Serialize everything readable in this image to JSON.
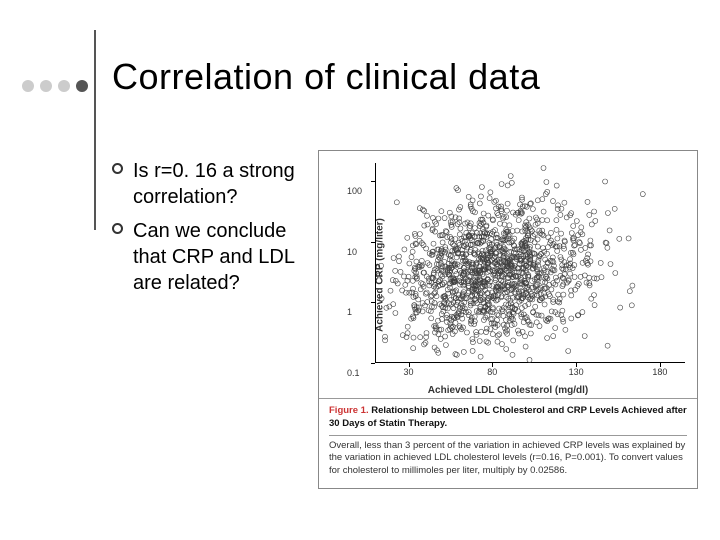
{
  "title": "Correlation of clinical data",
  "bullets": [
    "Is r=0. 16 a strong correlation?",
    "Can we conclude that CRP and LDL are related?"
  ],
  "title_fontsize": 36,
  "title_color": "#000000",
  "bullet_fontsize": 20,
  "decor_bullet_colors": [
    "#cccccc",
    "#cccccc",
    "#cccccc",
    "#555555"
  ],
  "vline_color": "#555555",
  "chart": {
    "type": "scatter",
    "xlabel": "Achieved LDL Cholesterol (mg/dl)",
    "ylabel": "Achieved CRP (mg/liter)",
    "label_fontsize": 10,
    "tick_fontsize": 9,
    "xlim": [
      10,
      195
    ],
    "ylim_log": [
      0.1,
      200
    ],
    "xticks": [
      30,
      80,
      130,
      180
    ],
    "yticks": [
      0.1,
      1,
      10,
      100
    ],
    "background_color": "#ffffff",
    "axis_color": "#000000",
    "marker_style": "open-circle",
    "marker_size": 2.5,
    "marker_stroke": "#404040",
    "marker_fill": "none",
    "n_points_approx": 1400,
    "x_cluster_mean": 80,
    "x_cluster_sd": 28,
    "y_log10_cluster_mean": 0.5,
    "y_log10_cluster_sd": 0.55,
    "r": 0.16,
    "seed": 123457
  },
  "caption": {
    "label": "Figure 1.",
    "title": "Relationship between LDL Cholesterol and CRP Levels Achieved after 30 Days of Statin Therapy.",
    "body": "Overall, less than 3 percent of the variation in achieved CRP levels was explained by the variation in achieved LDL cholesterol levels (r=0.16, P=0.001). To convert values for cholesterol to millimoles per liter, multiply by 0.02586.",
    "label_color": "#cc3333",
    "fontsize": 9.5
  }
}
